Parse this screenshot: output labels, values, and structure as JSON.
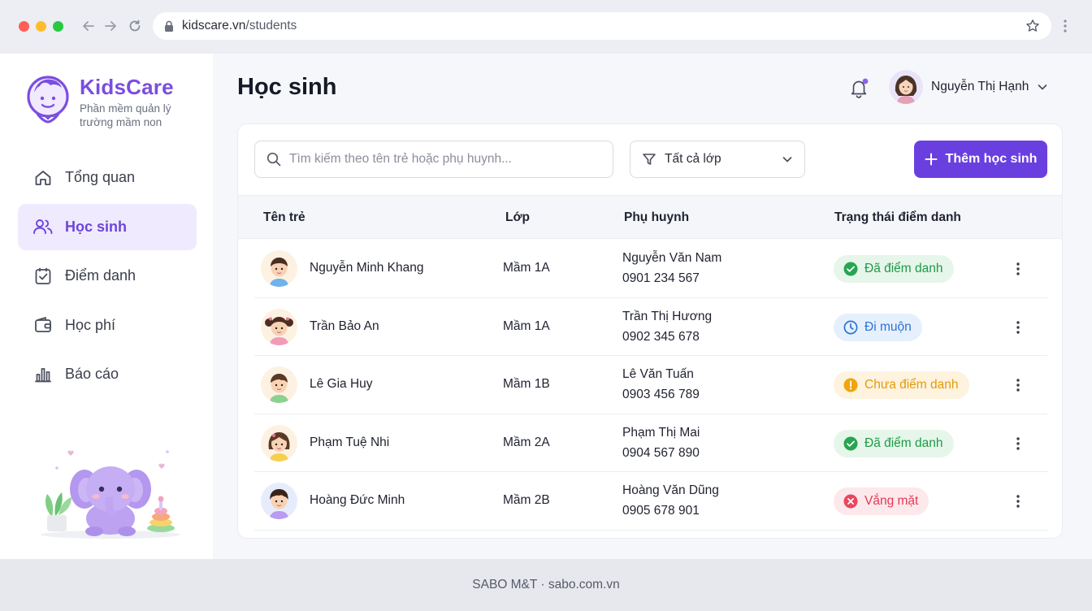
{
  "browser": {
    "url_domain": "kidscare.vn",
    "url_path": "/students"
  },
  "brand": {
    "name": "KidsCare",
    "subtitle": "Phần mềm quản lý trường mầm non",
    "color": "#7a4ee0"
  },
  "sidebar": {
    "items": [
      {
        "label": "Tổng quan",
        "icon": "home-icon",
        "active": false
      },
      {
        "label": "Học sinh",
        "icon": "users-icon",
        "active": true
      },
      {
        "label": "Điểm danh",
        "icon": "checklist-icon",
        "active": false
      },
      {
        "label": "Học phí",
        "icon": "wallet-icon",
        "active": false
      },
      {
        "label": "Báo cáo",
        "icon": "bar-chart-icon",
        "active": false
      }
    ]
  },
  "header": {
    "title": "Học sinh",
    "user_name": "Nguyễn Thị Hạnh",
    "has_notification": true
  },
  "toolbar": {
    "search_placeholder": "Tìm kiếm theo tên trẻ hoặc phụ huynh...",
    "filter_value": "Tất cả lớp",
    "add_label": "Thêm học sinh",
    "accent": "#6a3fe0"
  },
  "table": {
    "columns": [
      "Tên trẻ",
      "Lớp",
      "Phụ huynh",
      "Trạng thái điểm danh"
    ],
    "rows": [
      {
        "name": "Nguyễn Minh Khang",
        "class": "Mầm 1A",
        "parent": "Nguyễn Văn Nam",
        "phone": "0901 234 567",
        "status": "Đã điểm danh",
        "status_type": "green",
        "avatar": "boy"
      },
      {
        "name": "Trần Bảo An",
        "class": "Mầm 1A",
        "parent": "Trần Thị Hương",
        "phone": "0902 345 678",
        "status": "Đi muộn",
        "status_type": "blue",
        "avatar": "girl-pigtails"
      },
      {
        "name": "Lê Gia Huy",
        "class": "Mầm 1B",
        "parent": "Lê Văn Tuấn",
        "phone": "0903 456 789",
        "status": "Chưa điểm danh",
        "status_type": "amber",
        "avatar": "boy-green"
      },
      {
        "name": "Phạm Tuệ Nhi",
        "class": "Mầm 2A",
        "parent": "Phạm Thị Mai",
        "phone": "0904 567 890",
        "status": "Đã điểm danh",
        "status_type": "green",
        "avatar": "girl"
      },
      {
        "name": "Hoàng Đức Minh",
        "class": "Mầm 2B",
        "parent": "Hoàng Văn Dũng",
        "phone": "0905 678 901",
        "status": "Vắng mặt",
        "status_type": "red",
        "avatar": "boy-purple"
      }
    ]
  },
  "footer": {
    "text": "SABO M&T · sabo.com.vn"
  }
}
